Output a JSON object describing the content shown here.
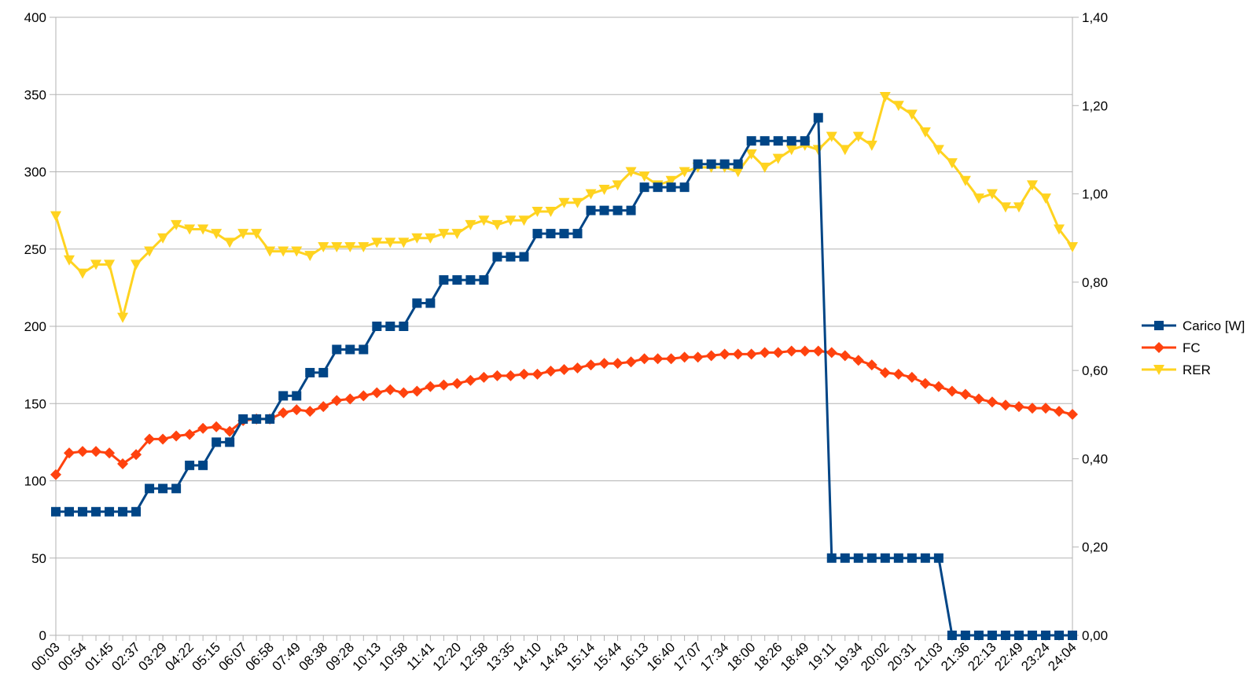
{
  "chart_data": {
    "type": "line",
    "title": "",
    "xlabel": "",
    "ylabel": "",
    "y2label": "",
    "x_tick_labels": [
      "00:03",
      "00:54",
      "01:45",
      "02:37",
      "03:29",
      "04:22",
      "05:15",
      "06:07",
      "06:58",
      "07:49",
      "08:38",
      "09:28",
      "10:13",
      "10:58",
      "11:41",
      "12:20",
      "12:58",
      "13:35",
      "14:10",
      "14:43",
      "15:14",
      "15:44",
      "16:13",
      "16:40",
      "17:07",
      "17:34",
      "18:00",
      "18:26",
      "18:49",
      "19:11",
      "19:34",
      "20:02",
      "20:31",
      "21:03",
      "21:36",
      "22:13",
      "22:49",
      "23:24",
      "24:04"
    ],
    "y_left": {
      "min": 0,
      "max": 400,
      "ticks": [
        "0",
        "50",
        "100",
        "150",
        "200",
        "250",
        "300",
        "350",
        "400"
      ]
    },
    "y_right": {
      "min": 0,
      "max": 1.4,
      "ticks": [
        "0,00",
        "0,20",
        "0,40",
        "0,60",
        "0,80",
        "1,00",
        "1,20",
        "1,40"
      ]
    },
    "grid": true,
    "legend_position": "right",
    "series": [
      {
        "name": "Carico [W]",
        "axis": "left",
        "marker": "square",
        "color": "#004586",
        "values": [
          80,
          80,
          80,
          80,
          80,
          80,
          80,
          95,
          95,
          95,
          110,
          110,
          125,
          125,
          140,
          140,
          140,
          155,
          155,
          170,
          170,
          185,
          185,
          185,
          200,
          200,
          200,
          215,
          215,
          230,
          230,
          230,
          230,
          245,
          245,
          245,
          260,
          260,
          260,
          260,
          275,
          275,
          275,
          275,
          290,
          290,
          290,
          290,
          305,
          305,
          305,
          305,
          320,
          320,
          320,
          320,
          320,
          335,
          50,
          50,
          50,
          50,
          50,
          50,
          50,
          50,
          50,
          0,
          0,
          0,
          0,
          0,
          0,
          0,
          0,
          0,
          0
        ]
      },
      {
        "name": "FC",
        "axis": "left",
        "marker": "diamond",
        "color": "#ff420e",
        "values": [
          104,
          118,
          119,
          119,
          118,
          111,
          117,
          127,
          127,
          129,
          130,
          134,
          135,
          132,
          139,
          140,
          140,
          144,
          146,
          145,
          148,
          152,
          153,
          155,
          157,
          159,
          157,
          158,
          161,
          162,
          163,
          165,
          167,
          168,
          168,
          169,
          169,
          171,
          172,
          173,
          175,
          176,
          176,
          177,
          179,
          179,
          179,
          180,
          180,
          181,
          182,
          182,
          182,
          183,
          183,
          184,
          184,
          184,
          183,
          181,
          178,
          175,
          170,
          169,
          167,
          163,
          161,
          158,
          156,
          153,
          151,
          149,
          148,
          147,
          147,
          145,
          143
        ]
      },
      {
        "name": "RER",
        "axis": "right",
        "marker": "triangle-down",
        "color": "#ffd320",
        "values": [
          0.95,
          0.85,
          0.82,
          0.84,
          0.84,
          0.72,
          0.84,
          0.87,
          0.9,
          0.93,
          0.92,
          0.92,
          0.91,
          0.89,
          0.91,
          0.91,
          0.87,
          0.87,
          0.87,
          0.86,
          0.88,
          0.88,
          0.88,
          0.88,
          0.89,
          0.89,
          0.89,
          0.9,
          0.9,
          0.91,
          0.91,
          0.93,
          0.94,
          0.93,
          0.94,
          0.94,
          0.96,
          0.96,
          0.98,
          0.98,
          1.0,
          1.01,
          1.02,
          1.05,
          1.04,
          1.02,
          1.03,
          1.05,
          1.06,
          1.06,
          1.06,
          1.05,
          1.09,
          1.06,
          1.08,
          1.1,
          1.11,
          1.1,
          1.13,
          1.1,
          1.13,
          1.11,
          1.22,
          1.2,
          1.18,
          1.14,
          1.1,
          1.07,
          1.03,
          0.99,
          1.0,
          0.97,
          0.97,
          1.02,
          0.99,
          0.92,
          0.88
        ]
      }
    ]
  }
}
